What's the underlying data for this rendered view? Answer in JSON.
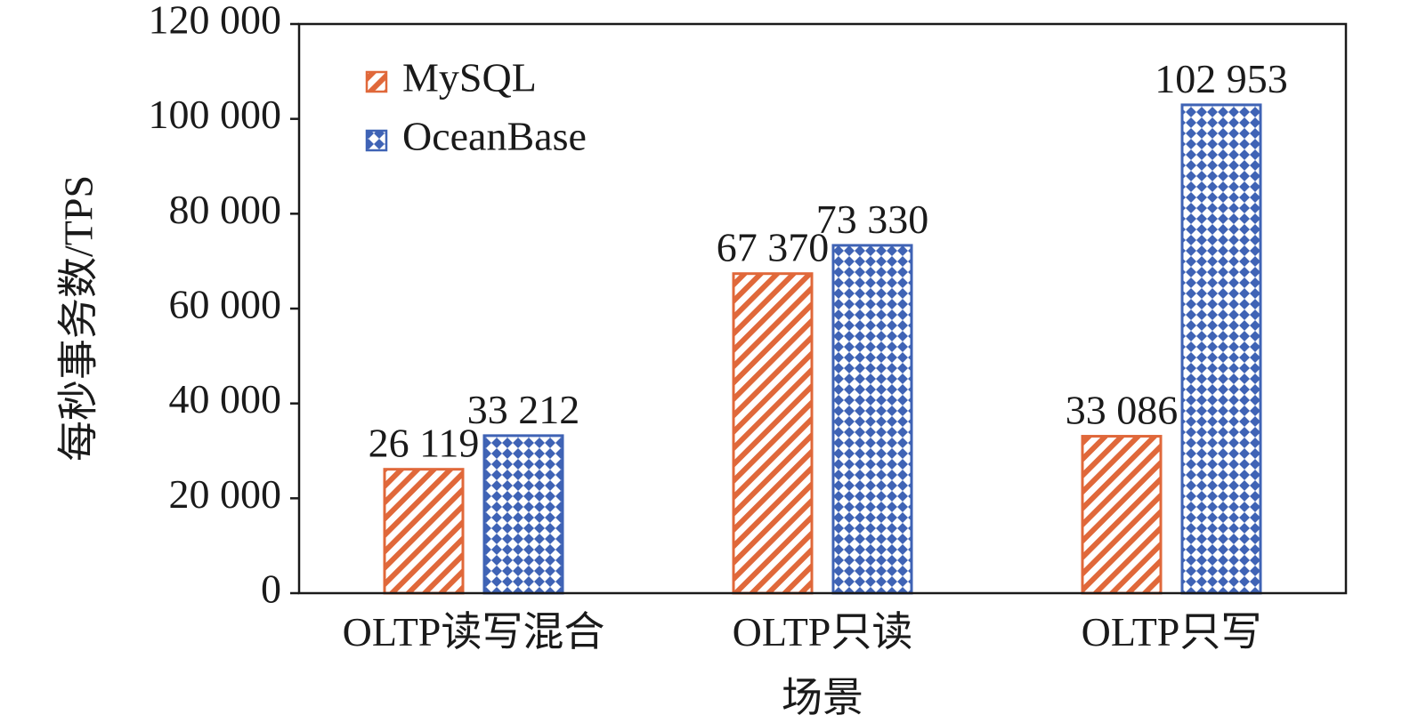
{
  "chart_data": {
    "type": "bar",
    "title": "",
    "xlabel": "场景",
    "ylabel": "每秒事务数/TPS",
    "categories": [
      "OLTP读写混合",
      "OLTP只读",
      "OLTP只写"
    ],
    "series": [
      {
        "name": "MySQL",
        "values": [
          26119,
          67370,
          33086
        ],
        "data_labels": [
          "26 119",
          "67 370",
          "33 086"
        ],
        "color": "#e0683a",
        "pattern": "diagonal-stripes"
      },
      {
        "name": "OceanBase",
        "values": [
          33212,
          73330,
          102953
        ],
        "data_labels": [
          "33 212",
          "73 330",
          "102 953"
        ],
        "color": "#3f63b5",
        "pattern": "dotted-grid"
      }
    ],
    "ylim": [
      0,
      120000
    ],
    "yticks": [
      0,
      20000,
      40000,
      60000,
      80000,
      100000,
      120000
    ],
    "ytick_labels": [
      "0",
      "20 000",
      "40 000",
      "60 000",
      "80 000",
      "100 000",
      "120 000"
    ],
    "legend_position": "top-left",
    "grid": false
  }
}
